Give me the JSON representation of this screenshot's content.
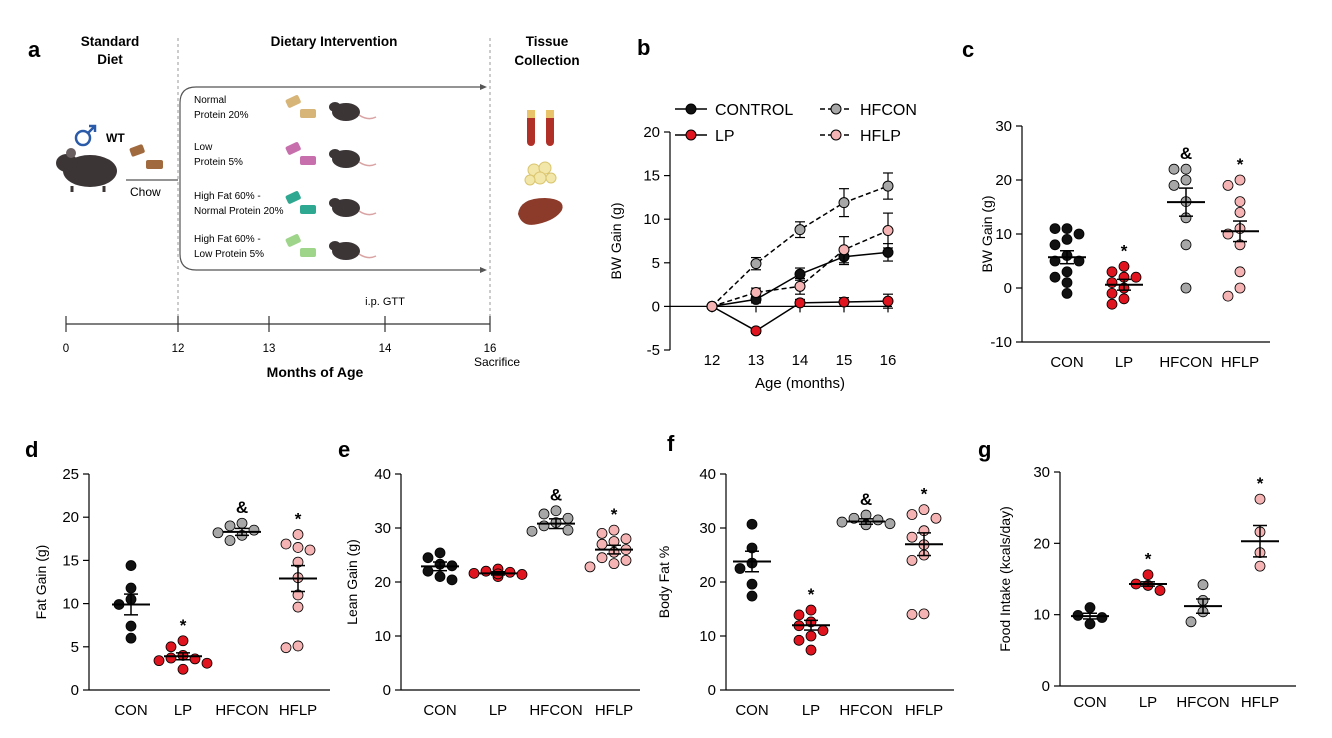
{
  "colors": {
    "con": "#111111",
    "lp": "#e0141e",
    "hfcon": "#a7a7a7",
    "hflp": "#f5b3b3",
    "text": "#000000",
    "schema_line": "#555555",
    "mouse": "#3b3536",
    "tail": "#d9a3a3"
  },
  "panel_a": {
    "letter": "a",
    "standard_diet": [
      "Standard",
      "Diet"
    ],
    "dietary_intervention": "Dietary Intervention",
    "tissue_collection": [
      "Tissue",
      "Collection"
    ],
    "wt_label": "WT",
    "chow_label": "Chow",
    "diets": [
      {
        "lines": [
          "Normal",
          "Protein 20%"
        ],
        "food_color": "#d7b477"
      },
      {
        "lines": [
          "Low",
          "Protein 5%"
        ],
        "food_color": "#c76fad"
      },
      {
        "lines": [
          "High Fat  60% -",
          "Normal Protein 20%"
        ],
        "food_color": "#2ea890"
      },
      {
        "lines": [
          "High Fat 60% -",
          "Low Protein 5%"
        ],
        "food_color": "#9fd48b"
      }
    ],
    "gtt_label": "i.p. GTT",
    "timeline_ticks": [
      "0",
      "12",
      "13",
      "14",
      "16"
    ],
    "sacrifice_label": "Sacrifice",
    "xlabel": "Months of Age",
    "icons": [
      "male-symbol-icon",
      "mouse-icon",
      "chow-pellet-icon",
      "food-pellet-icon",
      "blood-tube-icon",
      "adipose-tissue-icon",
      "liver-icon"
    ]
  },
  "chart_data": [
    {
      "id": "b",
      "letter": "b",
      "type": "line",
      "xlabel": "Age (months)",
      "ylabel": "BW Gain  (g)",
      "x": [
        12,
        13,
        14,
        15,
        16
      ],
      "xticks": [
        "12",
        "13",
        "14",
        "15",
        "16"
      ],
      "ylim": [
        -5,
        20
      ],
      "yticks": [
        "-5",
        "0",
        "5",
        "10",
        "15",
        "20"
      ],
      "legend": [
        "CONTROL",
        "LP",
        "HFCON",
        "HFLP"
      ],
      "series": [
        {
          "name": "CONTROL",
          "group": "con",
          "dashed": false,
          "values": [
            0,
            0.8,
            3.7,
            5.7,
            6.2
          ],
          "err": [
            0,
            0.4,
            0.7,
            0.9,
            1.0
          ]
        },
        {
          "name": "LP",
          "group": "lp",
          "dashed": false,
          "values": [
            0,
            -2.8,
            0.4,
            0.5,
            0.6
          ],
          "err": [
            0,
            0.3,
            0.4,
            0.5,
            0.8
          ]
        },
        {
          "name": "HFCON",
          "group": "hfcon",
          "dashed": true,
          "values": [
            0,
            4.9,
            8.8,
            11.9,
            13.8
          ],
          "err": [
            0,
            0.7,
            0.9,
            1.6,
            1.5
          ]
        },
        {
          "name": "HFLP",
          "group": "hflp",
          "dashed": true,
          "values": [
            0,
            1.6,
            2.3,
            6.5,
            8.7
          ],
          "err": [
            0,
            0.5,
            0.9,
            1.5,
            2.0
          ]
        }
      ]
    },
    {
      "id": "c",
      "letter": "c",
      "type": "scatter",
      "ylabel": "BW Gain  (g)",
      "categories": [
        "CON",
        "LP",
        "HFCON",
        "HFLP"
      ],
      "ylim": [
        -10,
        30
      ],
      "yticks": [
        "-10",
        "0",
        "10",
        "20",
        "30"
      ],
      "means": [
        5.7,
        0.6,
        15.9,
        10.5
      ],
      "sems": [
        1.2,
        1.0,
        2.6,
        1.9
      ],
      "annotations": [
        "",
        "*",
        "&",
        "*"
      ],
      "points": [
        [
          11,
          11,
          10,
          9,
          8,
          6,
          5,
          5,
          3,
          2,
          1,
          -1
        ],
        [
          4,
          3,
          2,
          2,
          1,
          0,
          -1,
          -2,
          -3
        ],
        [
          22,
          22,
          20,
          19,
          16,
          13,
          8,
          0
        ],
        [
          20,
          19,
          16,
          14,
          11,
          10,
          8,
          3,
          0,
          -1.5
        ]
      ]
    },
    {
      "id": "d",
      "letter": "d",
      "type": "scatter",
      "ylabel": "Fat Gain  (g)",
      "categories": [
        "CON",
        "LP",
        "HFCON",
        "HFLP"
      ],
      "ylim": [
        0,
        25
      ],
      "yticks": [
        "0",
        "5",
        "10",
        "15",
        "20",
        "25"
      ],
      "means": [
        9.9,
        3.9,
        18.3,
        12.9
      ],
      "sems": [
        1.2,
        0.4,
        0.4,
        1.5
      ],
      "annotations": [
        "",
        "*",
        "&",
        "*"
      ],
      "points": [
        [
          14.4,
          11.8,
          10.5,
          9.9,
          7.4,
          6.0
        ],
        [
          5.7,
          5.0,
          4.0,
          3.7,
          3.6,
          3.4,
          3.1,
          2.4
        ],
        [
          19.3,
          19.0,
          18.5,
          18.2,
          17.9,
          17.3
        ],
        [
          18.0,
          16.9,
          16.5,
          16.2,
          14.8,
          13.0,
          11.0,
          9.6,
          5.1,
          4.9
        ]
      ]
    },
    {
      "id": "e",
      "letter": "e",
      "type": "scatter",
      "ylabel": "Lean Gain (g)",
      "categories": [
        "CON",
        "LP",
        "HFCON",
        "HFLP"
      ],
      "ylim": [
        0,
        40
      ],
      "yticks": [
        "0",
        "10",
        "20",
        "30",
        "40"
      ],
      "means": [
        22.9,
        21.6,
        30.8,
        26.0
      ],
      "sems": [
        0.8,
        0.3,
        0.9,
        0.8
      ],
      "annotations": [
        "",
        "",
        "&",
        "*"
      ],
      "points": [
        [
          25.4,
          24.5,
          23.3,
          23.0,
          22.0,
          21.0,
          20.4
        ],
        [
          22.4,
          22.0,
          21.8,
          21.6,
          21.4,
          21.2,
          21.0,
          21.5
        ],
        [
          33.2,
          32.6,
          31.8,
          31.0,
          30.4,
          29.6,
          29.4
        ],
        [
          29.6,
          29.0,
          28.0,
          27.5,
          27.0,
          26.0,
          25.5,
          24.5,
          24.0,
          23.4,
          22.8
        ]
      ]
    },
    {
      "id": "f",
      "letter": "f",
      "type": "scatter",
      "ylabel": "Body Fat %",
      "categories": [
        "CON",
        "LP",
        "HFCON",
        "HFLP"
      ],
      "ylim": [
        0,
        40
      ],
      "yticks": [
        "0",
        "10",
        "20",
        "30",
        "40"
      ],
      "means": [
        23.8,
        12.0,
        31.2,
        27.0
      ],
      "sems": [
        1.9,
        0.9,
        0.5,
        2.1
      ],
      "annotations": [
        "",
        "*",
        "&",
        "*"
      ],
      "points": [
        [
          30.7,
          26.3,
          23.5,
          22.5,
          19.6,
          17.4
        ],
        [
          14.8,
          13.9,
          12.6,
          11.9,
          11.0,
          10.0,
          9.2,
          7.4
        ],
        [
          32.4,
          31.8,
          31.5,
          31.1,
          30.8,
          30.6
        ],
        [
          33.4,
          32.5,
          31.8,
          29.5,
          28.3,
          26.9,
          25.0,
          24.0,
          14.1,
          14.0
        ]
      ]
    },
    {
      "id": "g",
      "letter": "g",
      "type": "scatter",
      "ylabel": "Food Intake (kcals/day)",
      "categories": [
        "CON",
        "LP",
        "HFCON",
        "HFLP"
      ],
      "ylim": [
        0,
        30
      ],
      "yticks": [
        "0",
        "10",
        "20",
        "30"
      ],
      "means": [
        9.8,
        14.3,
        11.2,
        20.3
      ],
      "sems": [
        0.4,
        0.3,
        1.0,
        2.2
      ],
      "annotations": [
        "",
        "*",
        "",
        "*"
      ],
      "points": [
        [
          11.0,
          9.9,
          9.6,
          8.7
        ],
        [
          15.6,
          14.3,
          14.1,
          13.4
        ],
        [
          14.2,
          12.0,
          10.4,
          9.0
        ],
        [
          26.2,
          21.6,
          18.7,
          16.8
        ]
      ]
    }
  ]
}
